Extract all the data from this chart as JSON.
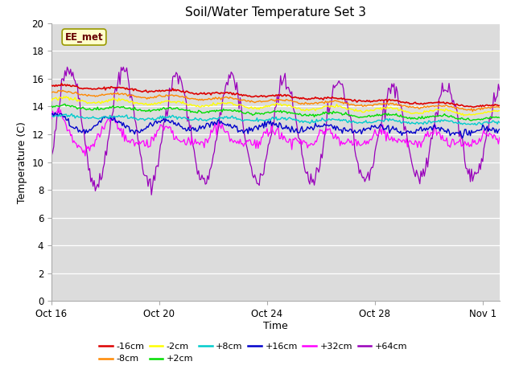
{
  "title": "Soil/Water Temperature Set 3",
  "xlabel": "Time",
  "ylabel": "Temperature (C)",
  "ylim": [
    0,
    20
  ],
  "yticks": [
    0,
    2,
    4,
    6,
    8,
    10,
    12,
    14,
    16,
    18,
    20
  ],
  "plot_bg_color": "#dcdcdc",
  "outer_bg_color": "#ffffff",
  "annotation_text": "EE_met",
  "annotation_box_color": "#ffffcc",
  "annotation_box_edge": "#999900",
  "series_colors": {
    "-16cm": "#dd0000",
    "-8cm": "#ff8800",
    "-2cm": "#ffff00",
    "+2cm": "#00dd00",
    "+8cm": "#00cccc",
    "+16cm": "#0000cc",
    "+32cm": "#ff00ff",
    "+64cm": "#9900bb"
  },
  "legend_labels": [
    "-16cm",
    "-8cm",
    "-2cm",
    "+2cm",
    "+8cm",
    "+16cm",
    "+32cm",
    "+64cm"
  ],
  "num_points": 400,
  "x_tick_labels": [
    "Oct 16",
    "Oct 20",
    "Oct 24",
    "Oct 28",
    "Nov 1"
  ],
  "x_tick_positions": [
    0,
    96,
    192,
    288,
    384
  ]
}
